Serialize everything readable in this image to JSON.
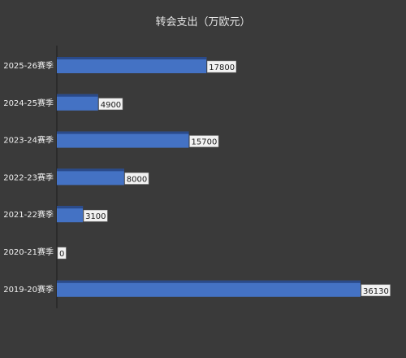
{
  "chart_data": {
    "type": "bar",
    "orientation": "horizontal",
    "title": "转会支出（万欧元）",
    "categories": [
      "2025-26赛季",
      "2024-25赛季",
      "2023-24赛季",
      "2022-23赛季",
      "2021-22赛季",
      "2020-21赛季",
      "2019-20赛季"
    ],
    "values": [
      17800,
      4900,
      15700,
      8000,
      3100,
      0,
      36130
    ],
    "xlim": [
      0,
      36130
    ],
    "grid": false,
    "legend": "none",
    "colors": {
      "background": "#3a3a3a",
      "bar": "#4472c4",
      "bar_top": "#2a4a8a",
      "axis": "#262626",
      "label_box": "#f2f2f2",
      "label_text": "#1a1a1a",
      "text": "#f2f2f2"
    }
  }
}
